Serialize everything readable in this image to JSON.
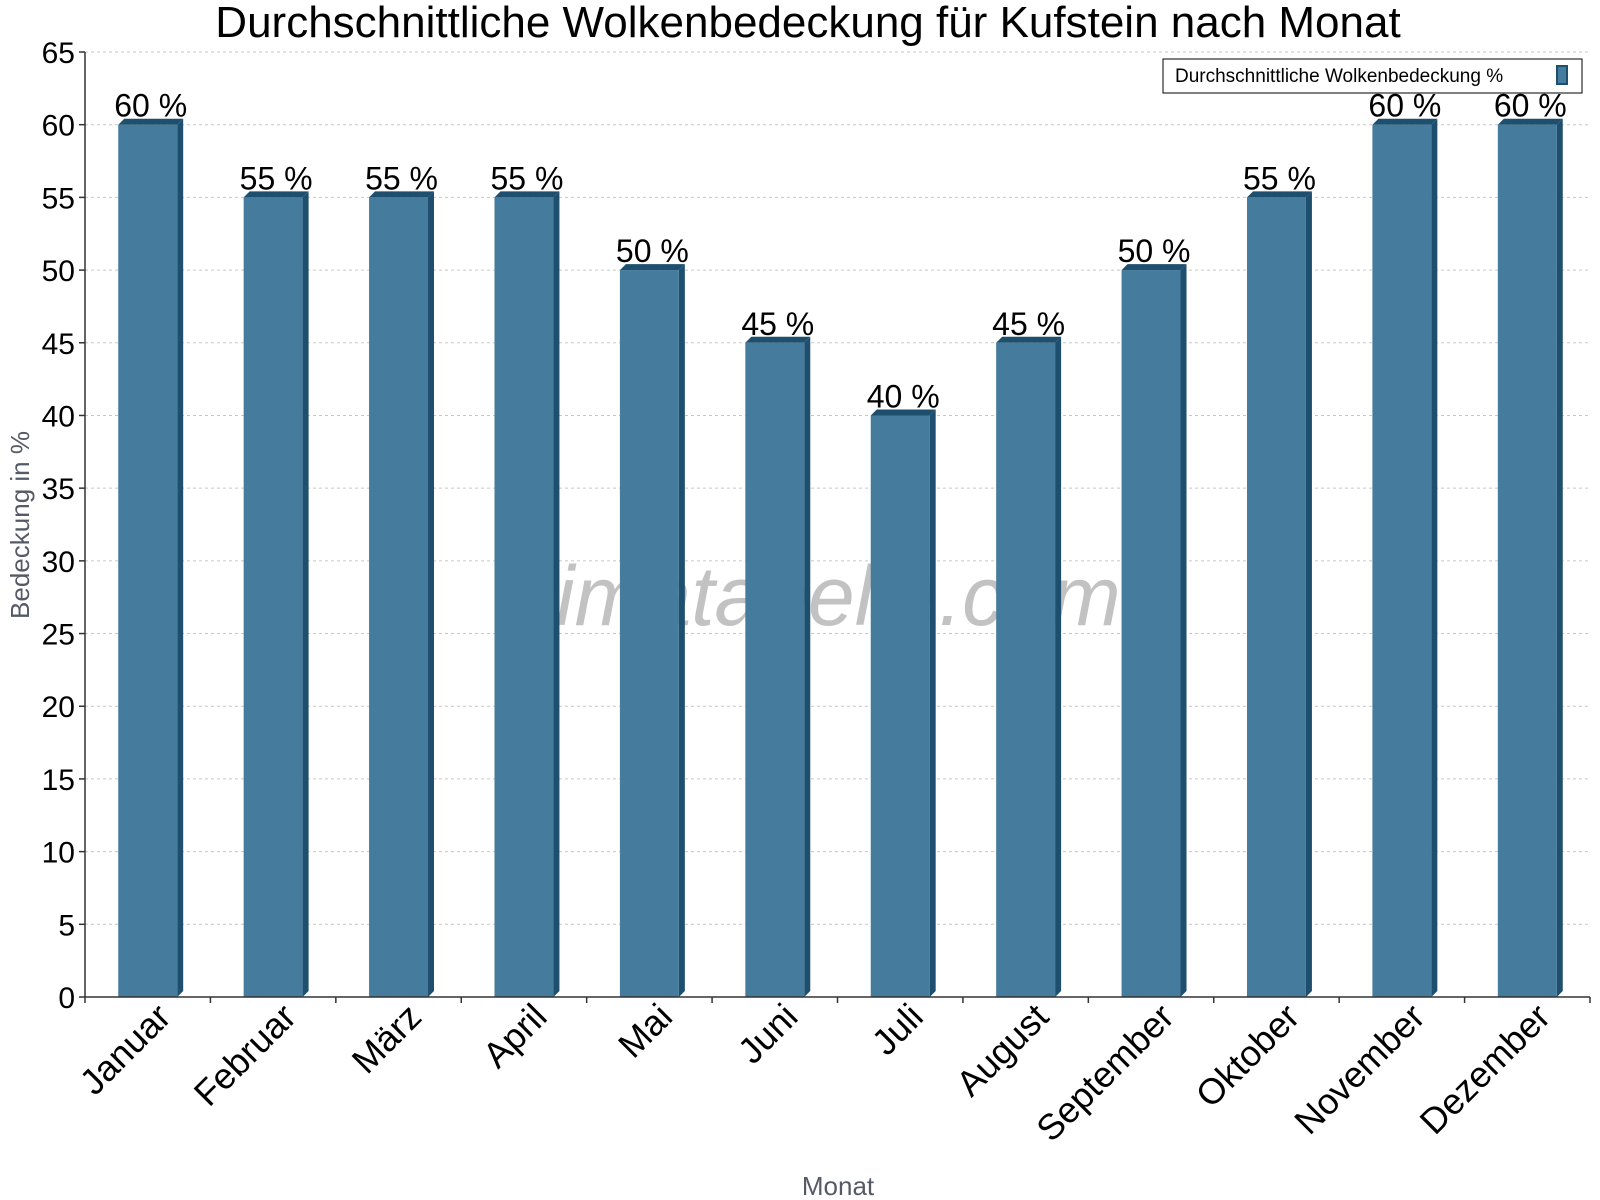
{
  "chart_data": {
    "type": "bar",
    "title": "Durchschnittliche Wolkenbedeckung für Kufstein nach Monat",
    "xlabel": "Monat",
    "ylabel": "Bedeckung in %",
    "categories": [
      "Januar",
      "Februar",
      "März",
      "April",
      "Mai",
      "Juni",
      "Juli",
      "August",
      "September",
      "Oktober",
      "November",
      "Dezember"
    ],
    "series": [
      {
        "name": "Durchschnittliche Wolkenbedeckung %",
        "values": [
          60,
          55,
          55,
          55,
          50,
          45,
          40,
          45,
          50,
          55,
          60,
          60
        ],
        "labels": [
          "60 %",
          "55 %",
          "55 %",
          "55 %",
          "50 %",
          "45 %",
          "40 %",
          "45 %",
          "50 %",
          "55 %",
          "60 %",
          "60 %"
        ],
        "color": "#457b9d",
        "edge_color": "#1e4f6e"
      }
    ],
    "ylim": [
      0,
      65
    ],
    "yticks": [
      0,
      5,
      10,
      15,
      20,
      25,
      30,
      35,
      40,
      45,
      50,
      55,
      60,
      65
    ],
    "grid": true,
    "legend_position": "top-right",
    "watermark": "klimatabelle.com"
  }
}
